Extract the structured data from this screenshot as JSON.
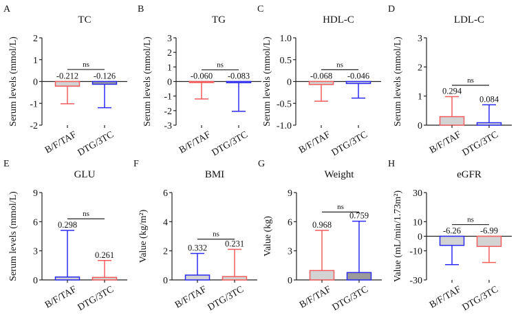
{
  "colors": {
    "red": "#f25c5c",
    "blue": "#2a2af0",
    "fill_light": "#d3d3d3",
    "fill_dark": "#9a9a9a",
    "axis": "#222222"
  },
  "chart_data": [
    {
      "letter": "A",
      "type": "bar",
      "title": "TC",
      "ylabel": "Serum levels (mmol/L)",
      "ylim": [
        -2,
        2
      ],
      "yticks": [
        "-2",
        "-1",
        "0",
        "1",
        "2"
      ],
      "ytick_values": [
        -2,
        -1,
        0,
        1,
        2
      ],
      "categories": [
        "B/F/TAF",
        "DTG/3TC"
      ],
      "values": [
        -0.212,
        -0.126
      ],
      "labels": [
        "-0.212",
        "-0.126"
      ],
      "error_end": [
        -1.02,
        -1.2
      ],
      "bar_colors": [
        "red",
        "blue"
      ],
      "bar_fills": [
        "fill_light",
        "fill_dark"
      ],
      "significance": {
        "text": "ns",
        "y": 0.55
      }
    },
    {
      "letter": "B",
      "type": "bar",
      "title": "TG",
      "ylabel": "Serum levels (mmol/L)",
      "ylim": [
        -3,
        3
      ],
      "yticks": [
        "-3",
        "-2",
        "-1",
        "0",
        "1",
        "2",
        "3"
      ],
      "ytick_values": [
        -3,
        -2,
        -1,
        0,
        1,
        2,
        3
      ],
      "categories": [
        "B/F/TAF",
        "DTG/3TC"
      ],
      "values": [
        -0.06,
        -0.083
      ],
      "labels": [
        "-0.060",
        "-0.083"
      ],
      "error_end": [
        -1.2,
        -2.05
      ],
      "bar_colors": [
        "red",
        "blue"
      ],
      "bar_fills": [
        "fill_light",
        "fill_light"
      ],
      "significance": {
        "text": "ns",
        "y": 0.8
      }
    },
    {
      "letter": "C",
      "type": "bar",
      "title": "HDL-C",
      "ylabel": "Serum levels (mmol/L)",
      "ylim": [
        -1,
        1
      ],
      "yticks": [
        "-1.0",
        "-0.5",
        "0",
        "0.5",
        "1.0"
      ],
      "ytick_values": [
        -1,
        -0.5,
        0,
        0.5,
        1
      ],
      "categories": [
        "B/F/TAF",
        "DTG/3TC"
      ],
      "values": [
        -0.068,
        -0.046
      ],
      "labels": [
        "-0.068",
        "-0.046"
      ],
      "error_end": [
        -0.45,
        -0.38
      ],
      "bar_colors": [
        "red",
        "blue"
      ],
      "bar_fills": [
        "fill_light",
        "fill_light"
      ],
      "significance": {
        "text": "ns",
        "y": 0.27
      }
    },
    {
      "letter": "D",
      "type": "bar",
      "title": "LDL-C",
      "ylabel": "Serum levels (mmol/L)",
      "ylim": [
        0,
        3
      ],
      "yticks": [
        "0",
        "1",
        "2",
        "3"
      ],
      "ytick_values": [
        0,
        1,
        2,
        3
      ],
      "categories": [
        "B/F/TAF",
        "DTG/3TC"
      ],
      "values": [
        0.294,
        0.084
      ],
      "labels": [
        "0.294",
        "0.084"
      ],
      "error_end": [
        0.98,
        0.7
      ],
      "bar_colors": [
        "red",
        "blue"
      ],
      "bar_fills": [
        "fill_light",
        "fill_light"
      ],
      "significance": {
        "text": "ns",
        "y": 1.37
      }
    },
    {
      "letter": "E",
      "type": "bar",
      "title": "GLU",
      "ylabel": "Serum levels (mmol/L)",
      "ylim": [
        0,
        9
      ],
      "yticks": [
        "0",
        "3",
        "6",
        "9"
      ],
      "ytick_values": [
        0,
        3,
        6,
        9
      ],
      "categories": [
        "B/F/TAF",
        "DTG/3TC"
      ],
      "values": [
        0.298,
        0.261
      ],
      "labels": [
        "0.298",
        "0.261"
      ],
      "error_end": [
        5.1,
        2.0
      ],
      "bar_colors": [
        "blue",
        "red"
      ],
      "bar_fills": [
        "fill_light",
        "fill_light"
      ],
      "significance": {
        "text": "ns",
        "y": 6.3
      }
    },
    {
      "letter": "F",
      "type": "bar",
      "title": "BMI",
      "ylabel": "Value (kg/m²)",
      "ylim": [
        0,
        6
      ],
      "yticks": [
        "0",
        "2",
        "4",
        "6"
      ],
      "ytick_values": [
        0,
        2,
        4,
        6
      ],
      "categories": [
        "B/F/TAF",
        "DTG/3TC"
      ],
      "values": [
        0.332,
        0.231
      ],
      "labels": [
        "0.332",
        "0.231"
      ],
      "error_end": [
        1.82,
        2.1
      ],
      "bar_colors": [
        "blue",
        "red"
      ],
      "bar_fills": [
        "fill_light",
        "fill_light"
      ],
      "significance": {
        "text": "ns",
        "y": 2.8
      }
    },
    {
      "letter": "G",
      "type": "bar",
      "title": "Weight",
      "ylabel": "Value (kg)",
      "ylim": [
        0,
        9
      ],
      "yticks": [
        "0",
        "3",
        "6",
        "9"
      ],
      "ytick_values": [
        0,
        3,
        6,
        9
      ],
      "categories": [
        "B/F/TAF",
        "DTG/3TC"
      ],
      "values": [
        0.968,
        0.759
      ],
      "labels": [
        "0.968",
        "0.759"
      ],
      "error_end": [
        5.1,
        6.05
      ],
      "bar_colors": [
        "red",
        "blue"
      ],
      "bar_fills": [
        "fill_light",
        "fill_dark"
      ],
      "significance": {
        "text": "ns",
        "y": 7.0
      }
    },
    {
      "letter": "H",
      "type": "bar",
      "title": "eGFR",
      "ylabel": "Value (mL/min/1.73m²)",
      "ylim": [
        -30,
        30
      ],
      "yticks": [
        "-30",
        "-10",
        "0",
        "10",
        "30"
      ],
      "ytick_values": [
        -30,
        -10,
        0,
        10,
        30
      ],
      "categories": [
        "B/F/TAF",
        "DTG/3TC"
      ],
      "values": [
        -6.26,
        -6.99
      ],
      "labels": [
        "-6.26",
        "-6.99"
      ],
      "error_end": [
        -19.5,
        -18.0
      ],
      "bar_colors": [
        "blue",
        "red"
      ],
      "bar_fills": [
        "fill_light",
        "fill_light"
      ],
      "significance": {
        "text": "ns",
        "y": 8
      }
    }
  ]
}
